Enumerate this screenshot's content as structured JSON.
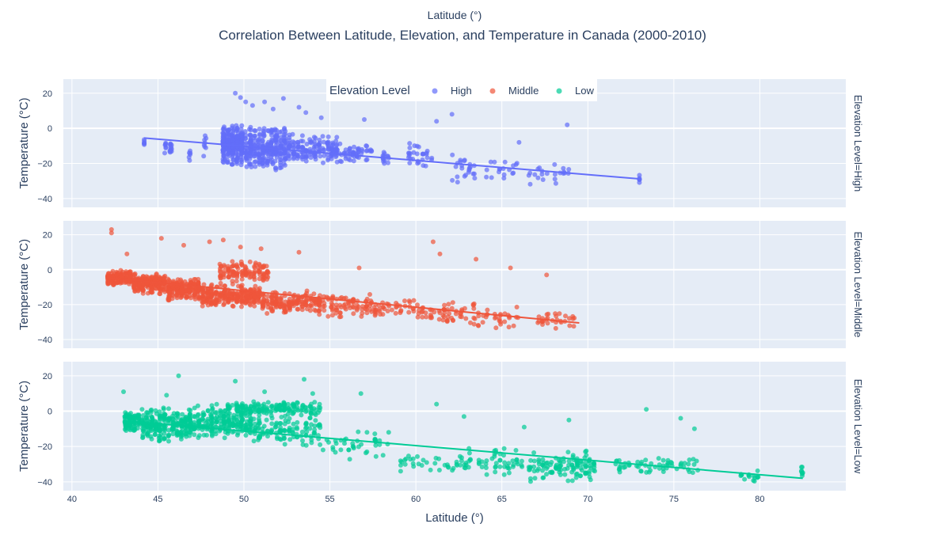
{
  "chart_data": {
    "type": "scatter",
    "title": "Correlation Between Latitude, Elevation, and Temperature in Canada (2000-2010)",
    "top_xlabel": "Latitude (°)",
    "xlabel": "Latitude (°)",
    "ylabel": "Temperature (°C)",
    "xlim": [
      39.5,
      85
    ],
    "ylim": [
      -45,
      28
    ],
    "x_ticks": [
      40,
      45,
      50,
      55,
      60,
      65,
      70,
      75,
      80
    ],
    "y_ticks": [
      -40,
      -20,
      0,
      20
    ],
    "grid": true,
    "legend": {
      "title": "Elevation Level",
      "placement": "top-center",
      "items": [
        "High",
        "Middle",
        "Low"
      ]
    },
    "colors": {
      "High": "#636efa",
      "Middle": "#ef553b",
      "Low": "#00cc96"
    },
    "plot_background": "#e5ecf6",
    "series": [
      {
        "name": "High",
        "facet_label": "Elevation Level=High",
        "trendline": {
          "x": [
            44.2,
            73.0
          ],
          "y": [
            -5.5,
            -28.8
          ]
        },
        "clusters": [
          {
            "x": [
              44.2,
              44.2
            ],
            "y": [
              -12,
              -5
            ],
            "n": 6
          },
          {
            "x": [
              45.3,
              45.9
            ],
            "y": [
              -16,
              -6
            ],
            "n": 20
          },
          {
            "x": [
              46.8,
              46.9
            ],
            "y": [
              -20,
              -10
            ],
            "n": 6
          },
          {
            "x": [
              47.6,
              47.8
            ],
            "y": [
              -18,
              -1
            ],
            "n": 8
          },
          {
            "x": [
              48.7,
              50.0
            ],
            "y": [
              -22,
              3
            ],
            "n": 260
          },
          {
            "x": [
              50.0,
              52.5
            ],
            "y": [
              -24,
              2
            ],
            "n": 280
          },
          {
            "x": [
              52.5,
              55.5
            ],
            "y": [
              -22,
              -3
            ],
            "n": 160
          },
          {
            "x": [
              55.5,
              57.5
            ],
            "y": [
              -20,
              -8
            ],
            "n": 50
          },
          {
            "x": [
              58.0,
              58.5
            ],
            "y": [
              -22,
              -10
            ],
            "n": 14
          },
          {
            "x": [
              59.5,
              61.0
            ],
            "y": [
              -25,
              -7
            ],
            "n": 30
          },
          {
            "x": [
              62.0,
              63.5
            ],
            "y": [
              -32,
              -14
            ],
            "n": 24
          },
          {
            "x": [
              64.0,
              66.0
            ],
            "y": [
              -30,
              -18
            ],
            "n": 18
          },
          {
            "x": [
              66.5,
              69.0
            ],
            "y": [
              -33,
              -20
            ],
            "n": 22
          },
          {
            "x": [
              73.0,
              73.0
            ],
            "y": [
              -32,
              -26
            ],
            "n": 6
          }
        ],
        "outliers": {
          "x": [
            49.5,
            49.8,
            50.1,
            50.5,
            51.2,
            51.7,
            52.3,
            53.2,
            53.6,
            54.5,
            57.0,
            61.2,
            62.1,
            66.0,
            68.8
          ],
          "y": [
            20,
            17.5,
            15,
            13,
            15,
            11,
            17,
            12,
            9,
            6,
            5,
            4,
            8,
            -8,
            2
          ]
        }
      },
      {
        "name": "Middle",
        "facet_label": "Elevation Level=Middle",
        "trendline": {
          "x": [
            42.0,
            69.5
          ],
          "y": [
            -4.5,
            -30.5
          ]
        },
        "clusters": [
          {
            "x": [
              42.0,
              43.5
            ],
            "y": [
              -9,
              0
            ],
            "n": 140
          },
          {
            "x": [
              43.5,
              45.5
            ],
            "y": [
              -14,
              -2
            ],
            "n": 200
          },
          {
            "x": [
              45.5,
              47.5
            ],
            "y": [
              -18,
              -4
            ],
            "n": 200
          },
          {
            "x": [
              47.5,
              51.0
            ],
            "y": [
              -22,
              -8
            ],
            "n": 260
          },
          {
            "x": [
              48.5,
              51.5
            ],
            "y": [
              -8,
              6
            ],
            "n": 120
          },
          {
            "x": [
              51.0,
              54.5
            ],
            "y": [
              -26,
              -12
            ],
            "n": 180
          },
          {
            "x": [
              54.5,
              57.5
            ],
            "y": [
              -28,
              -14
            ],
            "n": 80
          },
          {
            "x": [
              57.5,
              60.5
            ],
            "y": [
              -28,
              -16
            ],
            "n": 50
          },
          {
            "x": [
              60.5,
              63.5
            ],
            "y": [
              -32,
              -18
            ],
            "n": 50
          },
          {
            "x": [
              63.5,
              66.0
            ],
            "y": [
              -34,
              -20
            ],
            "n": 30
          },
          {
            "x": [
              67.0,
              69.3
            ],
            "y": [
              -35,
              -24
            ],
            "n": 30
          }
        ],
        "outliers": {
          "x": [
            42.3,
            42.3,
            43.2,
            45.2,
            46.5,
            48.0,
            48.8,
            49.8,
            51.0,
            53.2,
            56.7,
            61.0,
            61.4,
            63.5,
            65.5,
            67.6
          ],
          "y": [
            23,
            21,
            9,
            18,
            14,
            16,
            17,
            13,
            12,
            10,
            1,
            16,
            9,
            6,
            1,
            -3
          ]
        }
      },
      {
        "name": "Low",
        "facet_label": "Elevation Level=Low",
        "trendline": {
          "x": [
            43.0,
            82.5
          ],
          "y": [
            -5.5,
            -38.0
          ]
        },
        "clusters": [
          {
            "x": [
              43.0,
              44.0
            ],
            "y": [
              -12,
              0
            ],
            "n": 80
          },
          {
            "x": [
              44.0,
              47.0
            ],
            "y": [
              -18,
              3
            ],
            "n": 260
          },
          {
            "x": [
              47.0,
              50.5
            ],
            "y": [
              -16,
              4
            ],
            "n": 220
          },
          {
            "x": [
              49.0,
              54.5
            ],
            "y": [
              -3,
              6
            ],
            "n": 160
          },
          {
            "x": [
              50.5,
              54.5
            ],
            "y": [
              -20,
              -2
            ],
            "n": 120
          },
          {
            "x": [
              54.5,
              58.5
            ],
            "y": [
              -28,
              -8
            ],
            "n": 40
          },
          {
            "x": [
              59.0,
              63.0
            ],
            "y": [
              -36,
              -24
            ],
            "n": 40
          },
          {
            "x": [
              63.0,
              66.5
            ],
            "y": [
              -38,
              -20
            ],
            "n": 50
          },
          {
            "x": [
              66.5,
              70.5
            ],
            "y": [
              -40,
              -22
            ],
            "n": 120
          },
          {
            "x": [
              71.5,
              76.5
            ],
            "y": [
              -36,
              -26
            ],
            "n": 60
          },
          {
            "x": [
              78.8,
              80.0
            ],
            "y": [
              -41,
              -32
            ],
            "n": 16
          },
          {
            "x": [
              82.4,
              82.5
            ],
            "y": [
              -39,
              -30
            ],
            "n": 8
          }
        ],
        "outliers": {
          "x": [
            43.0,
            45.5,
            46.2,
            49.5,
            51.2,
            53.5,
            54.0,
            56.8,
            61.2,
            62.8,
            66.3,
            68.9,
            73.4,
            75.4,
            76.2
          ],
          "y": [
            11,
            9,
            20,
            17,
            11,
            18,
            10,
            10,
            4,
            -3,
            -9,
            -5,
            1,
            -4,
            -10
          ]
        }
      }
    ]
  }
}
